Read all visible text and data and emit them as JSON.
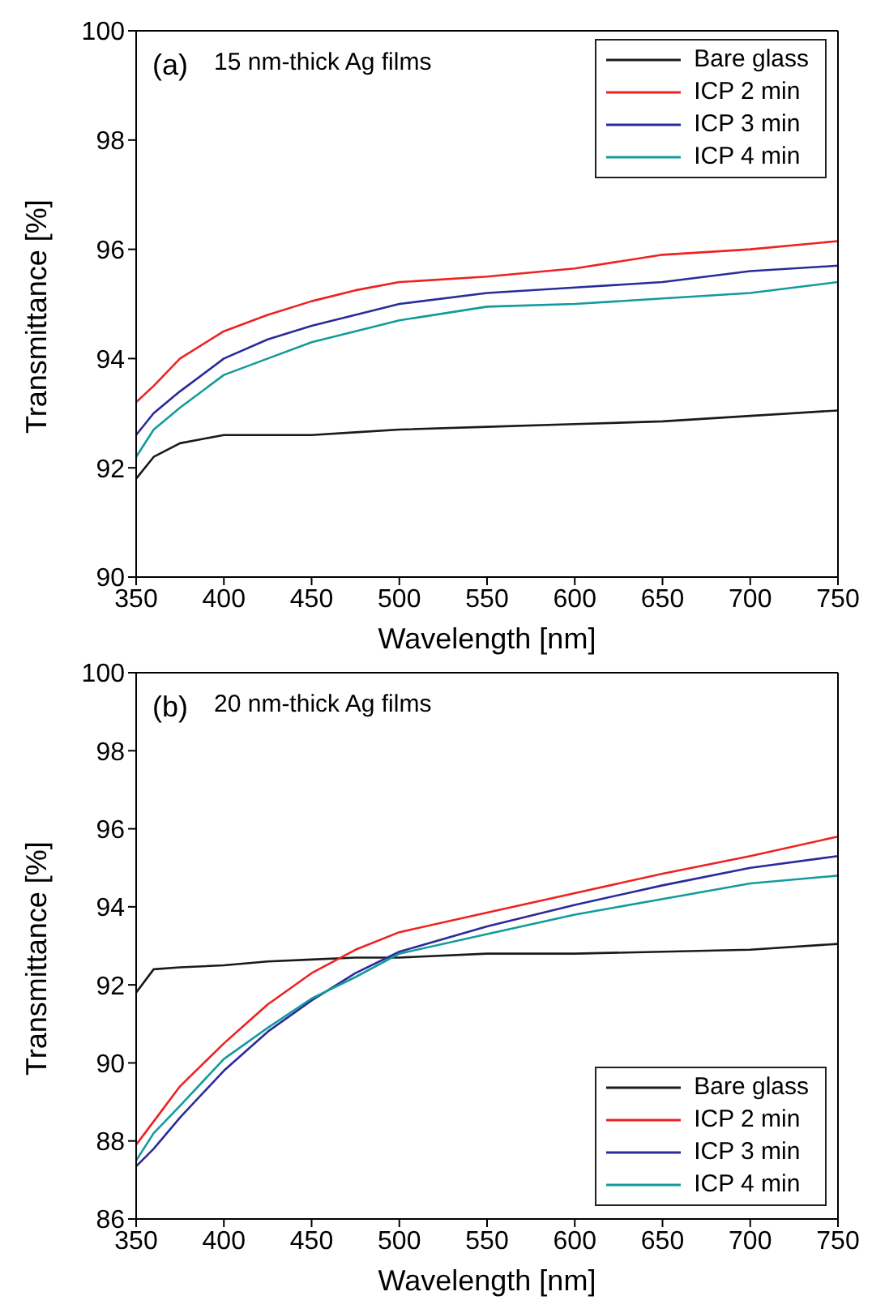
{
  "chart_data": [
    {
      "type": "line",
      "annotations": [
        "(a)",
        "15 nm-thick Ag films"
      ],
      "xlabel": "Wavelength [nm]",
      "ylabel": "Transmittance [%]",
      "x": [
        350,
        360,
        375,
        400,
        425,
        450,
        475,
        500,
        550,
        600,
        650,
        700,
        750
      ],
      "xlim": [
        350,
        750
      ],
      "ylim": [
        90,
        100
      ],
      "xticks": [
        350,
        400,
        450,
        500,
        550,
        600,
        650,
        700,
        750
      ],
      "yticks": [
        90,
        92,
        94,
        96,
        98,
        100
      ],
      "grid": false,
      "legend": "top right",
      "marker": "none",
      "line_style": "solid",
      "series": [
        {
          "name": "Bare glass",
          "color": "#1a1a1a",
          "values": [
            91.8,
            92.2,
            92.45,
            92.6,
            92.6,
            92.6,
            92.65,
            92.7,
            92.75,
            92.8,
            92.85,
            92.95,
            93.05
          ]
        },
        {
          "name": "ICP 2 min",
          "color": "#ee2222",
          "values": [
            93.2,
            93.5,
            94.0,
            94.5,
            94.8,
            95.05,
            95.25,
            95.4,
            95.5,
            95.65,
            95.9,
            96.0,
            96.15
          ]
        },
        {
          "name": "ICP 3 min",
          "color": "#2b2b9a",
          "values": [
            92.6,
            93.0,
            93.4,
            94.0,
            94.35,
            94.6,
            94.8,
            95.0,
            95.2,
            95.3,
            95.4,
            95.6,
            95.7
          ]
        },
        {
          "name": "ICP 4 min",
          "color": "#139b9b",
          "values": [
            92.2,
            92.7,
            93.1,
            93.7,
            94.0,
            94.3,
            94.5,
            94.7,
            94.95,
            95.0,
            95.1,
            95.2,
            95.4
          ]
        }
      ]
    },
    {
      "type": "line",
      "annotations": [
        "(b)",
        "20 nm-thick Ag films"
      ],
      "xlabel": "Wavelength [nm]",
      "ylabel": "Transmittance [%]",
      "x": [
        350,
        360,
        375,
        400,
        425,
        450,
        475,
        500,
        550,
        600,
        650,
        700,
        750
      ],
      "xlim": [
        350,
        750
      ],
      "ylim": [
        86,
        100
      ],
      "xticks": [
        350,
        400,
        450,
        500,
        550,
        600,
        650,
        700,
        750
      ],
      "yticks": [
        86,
        88,
        90,
        92,
        94,
        96,
        98,
        100
      ],
      "grid": false,
      "legend": "bottom right",
      "marker": "none",
      "line_style": "solid",
      "series": [
        {
          "name": "Bare glass",
          "color": "#1a1a1a",
          "values": [
            91.8,
            92.4,
            92.45,
            92.5,
            92.6,
            92.65,
            92.7,
            92.7,
            92.8,
            92.8,
            92.85,
            92.9,
            93.05
          ]
        },
        {
          "name": "ICP 2 min",
          "color": "#ee2222",
          "values": [
            87.9,
            88.5,
            89.4,
            90.5,
            91.5,
            92.3,
            92.9,
            93.35,
            93.85,
            94.35,
            94.85,
            95.3,
            95.8
          ]
        },
        {
          "name": "ICP 3 min",
          "color": "#2b2b9a",
          "values": [
            87.35,
            87.8,
            88.6,
            89.8,
            90.8,
            91.6,
            92.3,
            92.85,
            93.5,
            94.05,
            94.55,
            95.0,
            95.3
          ]
        },
        {
          "name": "ICP 4 min",
          "color": "#139b9b",
          "values": [
            87.5,
            88.2,
            88.9,
            90.1,
            90.9,
            91.65,
            92.2,
            92.8,
            93.3,
            93.8,
            94.2,
            94.6,
            94.8
          ]
        }
      ]
    }
  ]
}
